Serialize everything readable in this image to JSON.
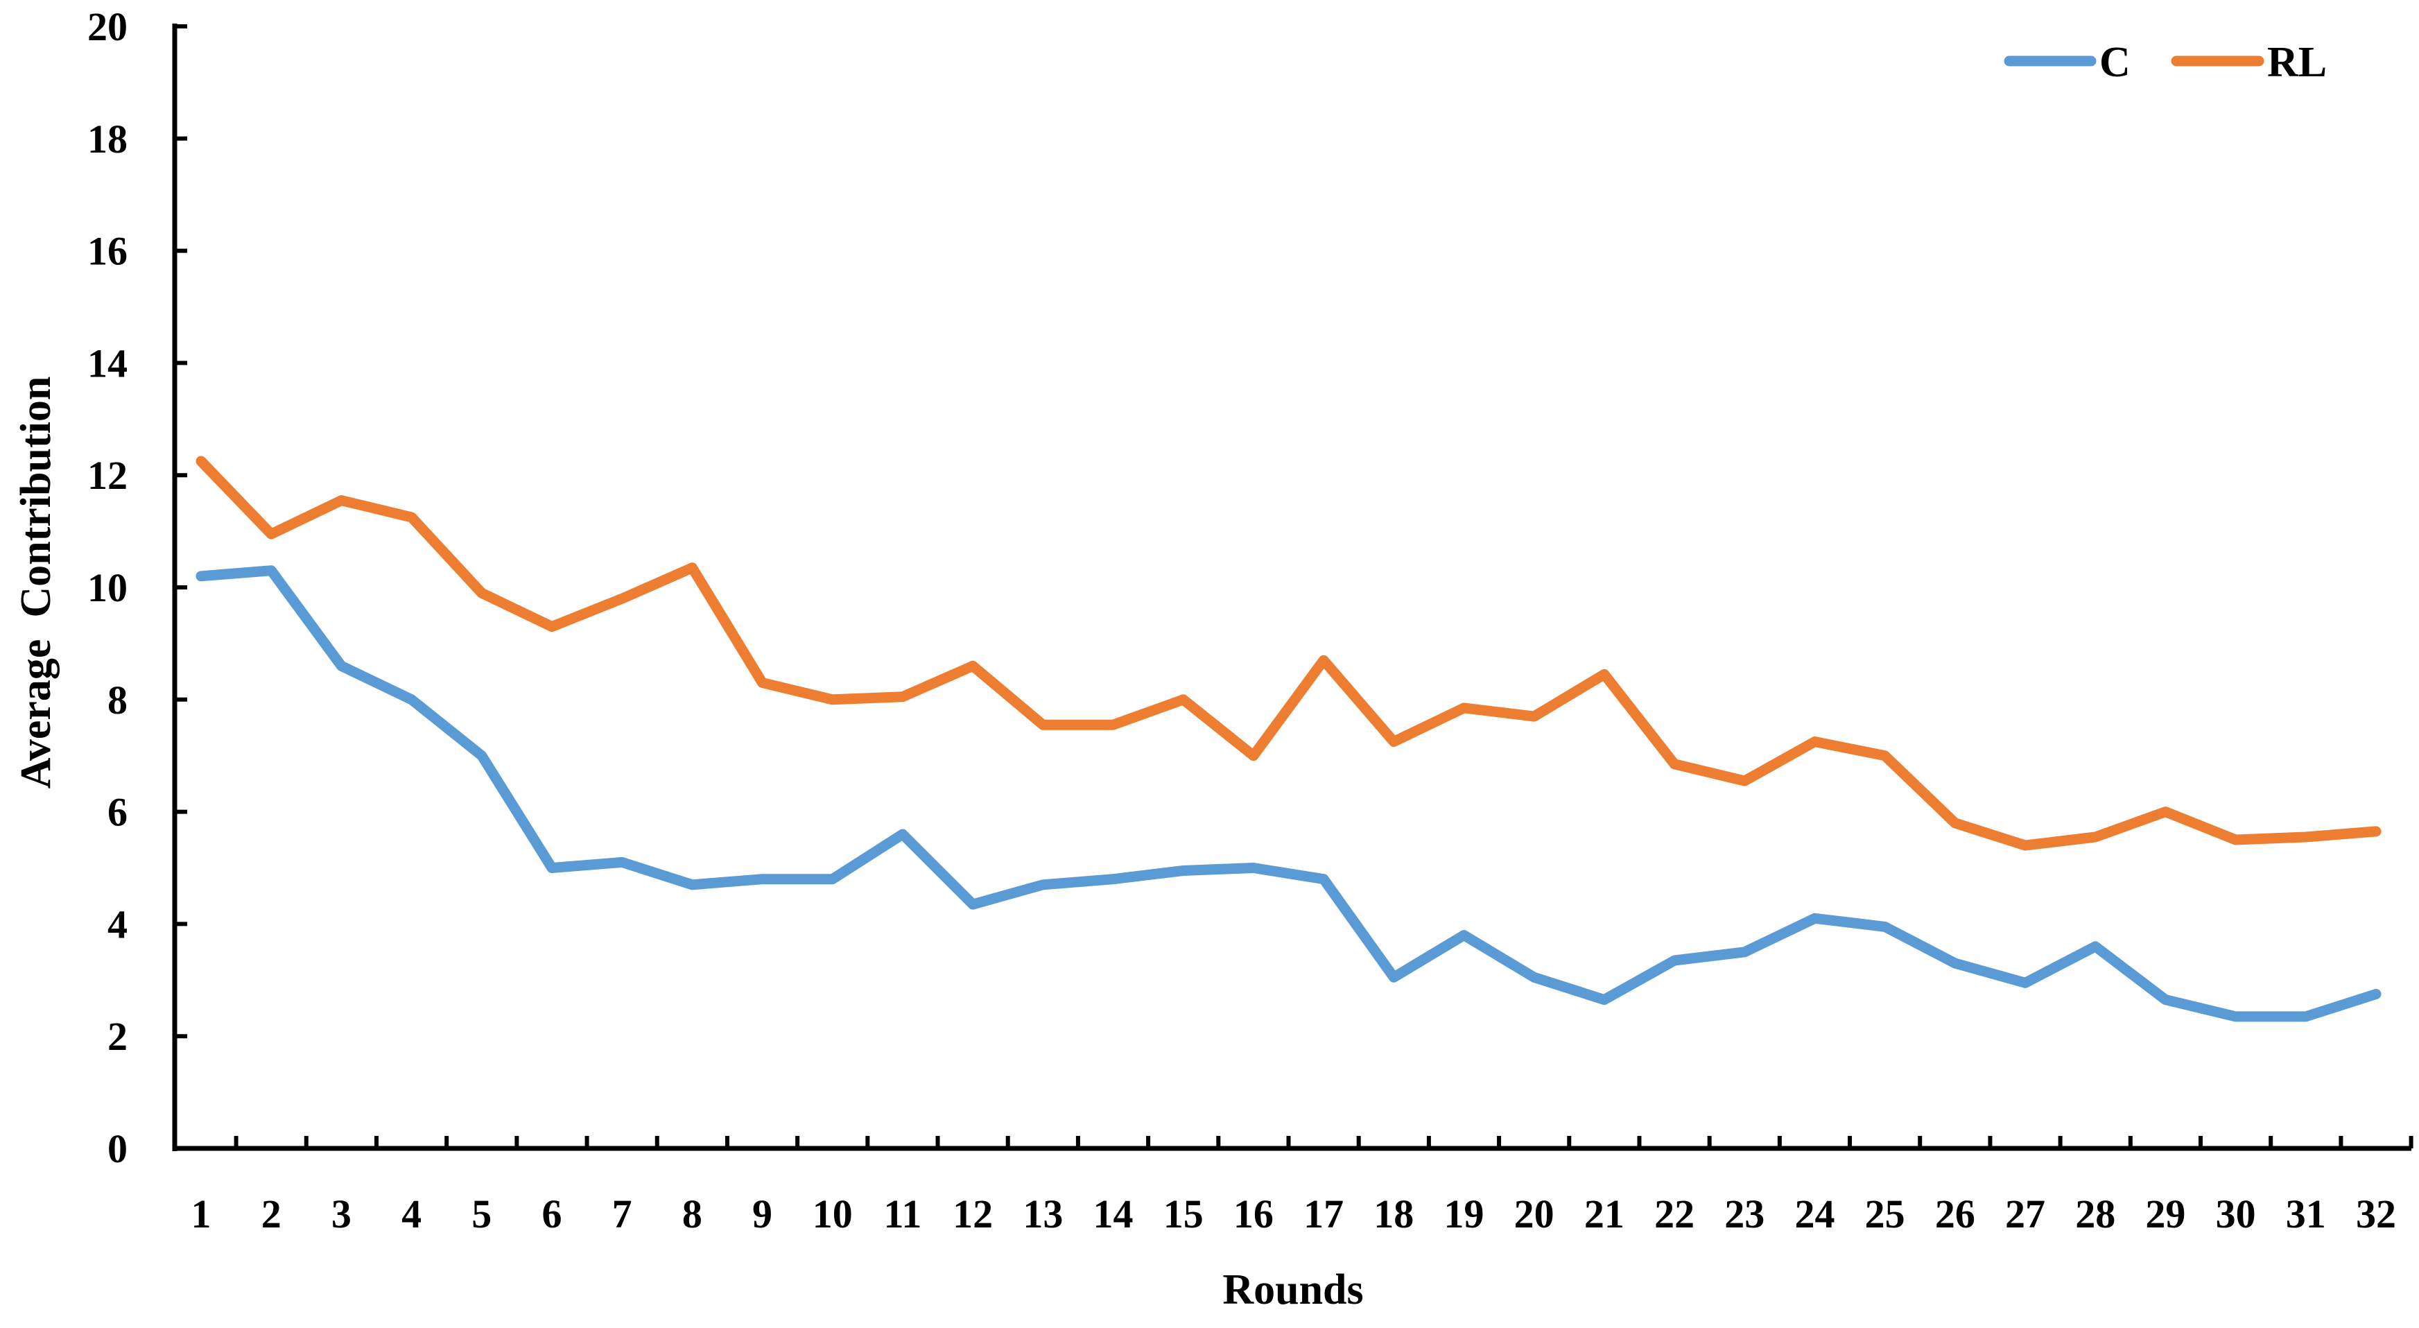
{
  "chart_data": {
    "type": "line",
    "title": "",
    "xlabel": "Rounds",
    "ylabel": "Average  Contribution",
    "categories": [
      "1",
      "2",
      "3",
      "4",
      "5",
      "6",
      "7",
      "8",
      "9",
      "10",
      "11",
      "12",
      "13",
      "14",
      "15",
      "16",
      "17",
      "18",
      "19",
      "20",
      "21",
      "22",
      "23",
      "24",
      "25",
      "26",
      "27",
      "28",
      "29",
      "30",
      "31",
      "32"
    ],
    "ylim": [
      0,
      20
    ],
    "yticks": [
      "0",
      "2",
      "4",
      "6",
      "8",
      "10",
      "12",
      "14",
      "16",
      "18",
      "20"
    ],
    "grid": false,
    "legend_position": "top-right",
    "series": [
      {
        "name": "C",
        "color": "#5B9BD5",
        "values": [
          10.2,
          10.3,
          8.6,
          8.0,
          7.0,
          5.0,
          5.1,
          4.7,
          4.8,
          4.8,
          5.6,
          4.35,
          4.7,
          4.8,
          4.95,
          5.0,
          4.8,
          3.05,
          3.8,
          3.05,
          2.65,
          3.35,
          3.5,
          4.1,
          3.95,
          3.3,
          2.95,
          3.6,
          2.65,
          2.35,
          2.35,
          2.75
        ]
      },
      {
        "name": "RL",
        "color": "#ED7D31",
        "values": [
          12.25,
          10.95,
          11.55,
          11.25,
          9.9,
          9.3,
          9.8,
          10.35,
          8.3,
          8.0,
          8.05,
          8.6,
          7.55,
          7.55,
          8.0,
          7.0,
          8.7,
          7.25,
          7.85,
          7.7,
          8.45,
          6.85,
          6.55,
          7.25,
          7.0,
          5.8,
          5.4,
          5.55,
          6.0,
          5.5,
          5.55,
          5.65
        ]
      }
    ]
  }
}
